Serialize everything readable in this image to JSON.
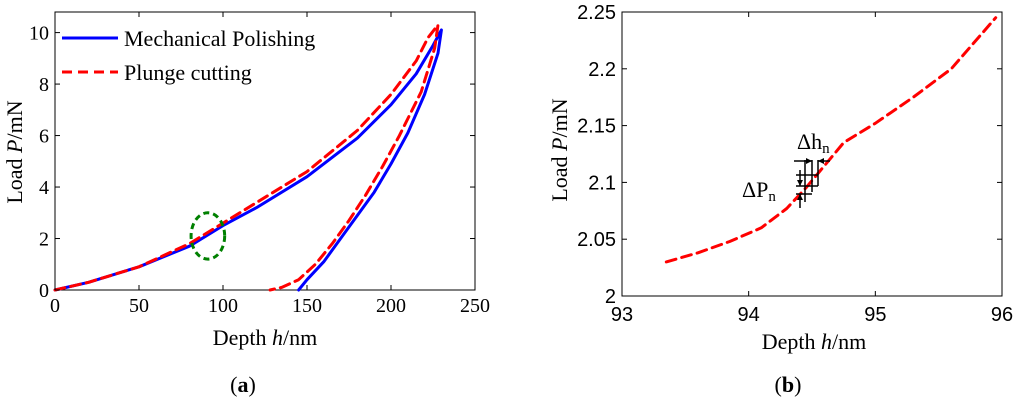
{
  "chart_data": [
    {
      "type": "line",
      "panel_label": "(a)",
      "xlabel": "Depth h/nm",
      "ylabel": "Load P/mN",
      "xlim": [
        0,
        250
      ],
      "ylim": [
        0,
        10.8
      ],
      "xticks": [
        0,
        50,
        100,
        150,
        200,
        250
      ],
      "yticks": [
        0,
        2,
        4,
        6,
        8,
        10
      ],
      "grid": false,
      "legend_position": "top-left",
      "series": [
        {
          "name": "Mechanical Polishing",
          "color": "#0000ff",
          "style": "solid",
          "x": [
            0,
            20,
            50,
            80,
            100,
            120,
            150,
            180,
            200,
            215,
            225,
            230,
            228,
            220,
            210,
            200,
            190,
            180,
            170,
            160,
            150,
            145
          ],
          "y": [
            0,
            0.3,
            0.9,
            1.7,
            2.5,
            3.2,
            4.4,
            5.9,
            7.2,
            8.4,
            9.5,
            10.1,
            9.2,
            7.6,
            6.1,
            4.9,
            3.8,
            2.9,
            2.0,
            1.1,
            0.4,
            0
          ]
        },
        {
          "name": "Plunge cutting",
          "color": "#ff0000",
          "style": "dashed",
          "x": [
            0,
            20,
            50,
            80,
            100,
            120,
            150,
            180,
            200,
            215,
            222,
            228,
            226,
            218,
            205,
            195,
            185,
            175,
            165,
            155,
            145,
            135,
            128
          ],
          "y": [
            0,
            0.3,
            0.9,
            1.8,
            2.6,
            3.4,
            4.6,
            6.2,
            7.6,
            8.9,
            9.8,
            10.3,
            9.4,
            7.7,
            6.0,
            4.8,
            3.7,
            2.7,
            1.8,
            1.0,
            0.4,
            0.1,
            0
          ]
        }
      ],
      "annotations": [
        {
          "type": "ellipse",
          "color": "#008000",
          "style": "dashed",
          "x": 91,
          "y": 2.1,
          "rx": 10,
          "ry": 0.9
        }
      ]
    },
    {
      "type": "line",
      "panel_label": "(b)",
      "xlabel": "Depth h/nm",
      "ylabel": "Load P/mN",
      "xlim": [
        93,
        96
      ],
      "ylim": [
        2,
        2.25
      ],
      "xticks": [
        93,
        94,
        95,
        96
      ],
      "yticks": [
        2,
        2.05,
        2.1,
        2.15,
        2.2,
        2.25
      ],
      "ytick_labels": [
        "2",
        "2.05",
        "2.1",
        "2.15",
        "2.2",
        "2.25"
      ],
      "grid": false,
      "series": [
        {
          "color": "#ff0000",
          "style": "dashed",
          "x": [
            93.35,
            93.6,
            93.85,
            94.1,
            94.3,
            94.45,
            94.6,
            94.75,
            95.0,
            95.3,
            95.6,
            95.95
          ],
          "y": [
            2.03,
            2.038,
            2.048,
            2.06,
            2.077,
            2.095,
            2.115,
            2.135,
            2.152,
            2.175,
            2.2,
            2.245
          ]
        }
      ],
      "annotations": [
        {
          "text": "ΔP",
          "subscript": "n"
        },
        {
          "text": "Δh",
          "subscript": "n"
        }
      ]
    }
  ]
}
